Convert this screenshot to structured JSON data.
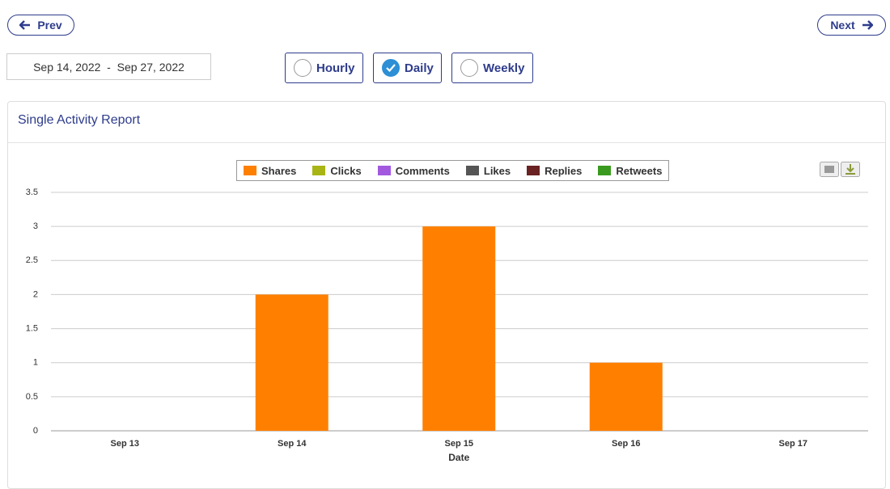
{
  "nav": {
    "prev": "Prev",
    "next": "Next"
  },
  "date_range": "Sep 14, 2022  -  Sep 27, 2022",
  "granularity": {
    "options": [
      "Hourly",
      "Daily",
      "Weekly"
    ],
    "selected": "Daily"
  },
  "panel_title": "Single Activity Report",
  "chart_data": {
    "type": "bar",
    "stacked": true,
    "categories": [
      "Sep 13",
      "Sep 14",
      "Sep 15",
      "Sep 16",
      "Sep 17"
    ],
    "xlabel": "Date",
    "series": [
      {
        "name": "Shares",
        "color": "#ff8000",
        "values": [
          0,
          2,
          3,
          1,
          0
        ]
      },
      {
        "name": "Clicks",
        "color": "#a8b514",
        "values": [
          0,
          0,
          0,
          0,
          0
        ]
      },
      {
        "name": "Comments",
        "color": "#a259e0",
        "values": [
          0,
          0,
          0,
          0,
          0
        ]
      },
      {
        "name": "Likes",
        "color": "#555555",
        "values": [
          0,
          0,
          0,
          0,
          0
        ]
      },
      {
        "name": "Replies",
        "color": "#6b2222",
        "values": [
          0,
          0,
          0,
          0,
          0
        ]
      },
      {
        "name": "Retweets",
        "color": "#3a9a1f",
        "values": [
          0,
          0,
          0,
          0,
          0
        ]
      }
    ],
    "ylim": [
      0,
      3.5
    ],
    "yticks": [
      0,
      0.5,
      1,
      1.5,
      2,
      2.5,
      3,
      3.5
    ],
    "grid": true,
    "legend": "top"
  }
}
